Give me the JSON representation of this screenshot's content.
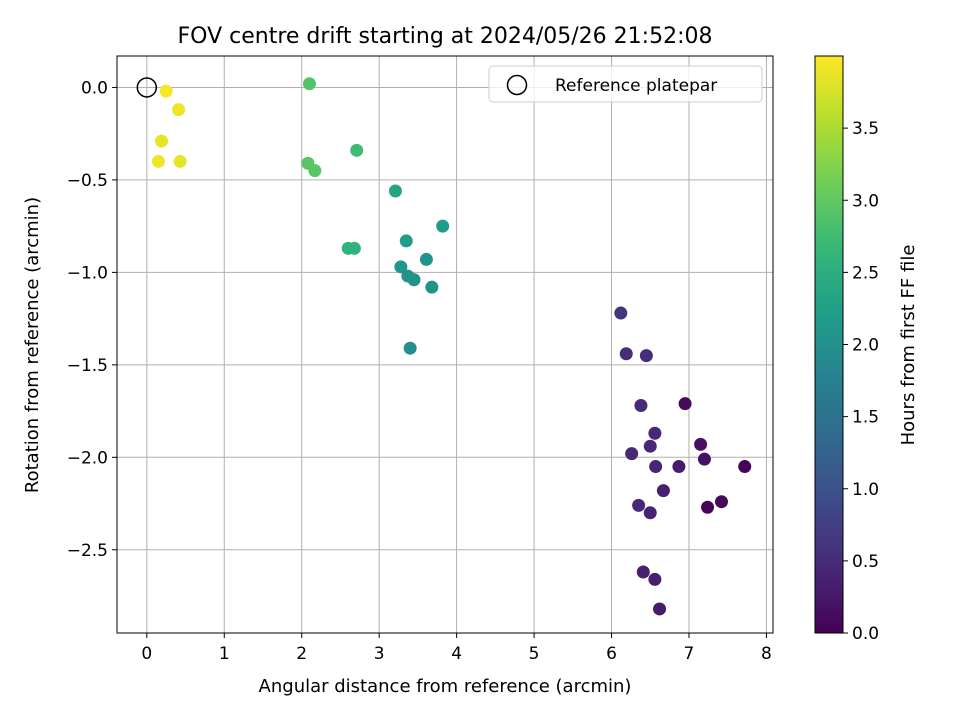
{
  "chart_data": {
    "type": "scatter",
    "title": "FOV centre drift starting at 2024/05/26 21:52:08",
    "xlabel": "Angular distance from reference (arcmin)",
    "ylabel": "Rotation from reference (arcmin)",
    "xlim": [
      -0.385,
      8.085
    ],
    "ylim": [
      -2.95,
      0.17
    ],
    "xticks": [
      0,
      1,
      2,
      3,
      4,
      5,
      6,
      7,
      8
    ],
    "xtick_labels": [
      "0",
      "1",
      "2",
      "3",
      "4",
      "5",
      "6",
      "7",
      "8"
    ],
    "yticks": [
      0.0,
      -0.5,
      -1.0,
      -1.5,
      -2.0,
      -2.5
    ],
    "ytick_labels": [
      "0.0",
      "−0.5",
      "−1.0",
      "−1.5",
      "−2.0",
      "−2.5"
    ],
    "grid": true,
    "legend": {
      "position": "upper-right",
      "entries": [
        {
          "label": "Reference platepar",
          "marker": "open-circle",
          "color": "#000000"
        }
      ]
    },
    "reference_point": {
      "x": 0.0,
      "y": 0.0
    },
    "colorbar": {
      "label": "Hours from first FF file",
      "colormap": "viridis",
      "range": [
        0.0,
        4.0
      ],
      "ticks": [
        0.0,
        0.5,
        1.0,
        1.5,
        2.0,
        2.5,
        3.0,
        3.5
      ],
      "tick_labels": [
        "0.0",
        "0.5",
        "1.0",
        "1.5",
        "2.0",
        "2.5",
        "3.0",
        "3.5"
      ]
    },
    "points": [
      {
        "x": 0.25,
        "y": -0.02,
        "hours": 3.95
      },
      {
        "x": 0.41,
        "y": -0.12,
        "hours": 3.9
      },
      {
        "x": 0.19,
        "y": -0.29,
        "hours": 3.85
      },
      {
        "x": 0.15,
        "y": -0.4,
        "hours": 3.9
      },
      {
        "x": 0.43,
        "y": -0.4,
        "hours": 3.85
      },
      {
        "x": 2.1,
        "y": 0.02,
        "hours": 2.9
      },
      {
        "x": 2.08,
        "y": -0.41,
        "hours": 2.95
      },
      {
        "x": 2.17,
        "y": -0.45,
        "hours": 2.95
      },
      {
        "x": 2.71,
        "y": -0.34,
        "hours": 2.75
      },
      {
        "x": 3.21,
        "y": -0.56,
        "hours": 2.35
      },
      {
        "x": 2.6,
        "y": -0.87,
        "hours": 2.6
      },
      {
        "x": 2.68,
        "y": -0.87,
        "hours": 2.6
      },
      {
        "x": 3.35,
        "y": -0.83,
        "hours": 2.2
      },
      {
        "x": 3.82,
        "y": -0.75,
        "hours": 2.2
      },
      {
        "x": 3.28,
        "y": -0.97,
        "hours": 2.1
      },
      {
        "x": 3.61,
        "y": -0.93,
        "hours": 2.05
      },
      {
        "x": 3.37,
        "y": -1.02,
        "hours": 2.05
      },
      {
        "x": 3.45,
        "y": -1.04,
        "hours": 2.05
      },
      {
        "x": 3.68,
        "y": -1.08,
        "hours": 2.05
      },
      {
        "x": 3.4,
        "y": -1.41,
        "hours": 2.0
      },
      {
        "x": 6.12,
        "y": -1.22,
        "hours": 0.6
      },
      {
        "x": 6.19,
        "y": -1.44,
        "hours": 0.5
      },
      {
        "x": 6.45,
        "y": -1.45,
        "hours": 0.5
      },
      {
        "x": 6.38,
        "y": -1.72,
        "hours": 0.45
      },
      {
        "x": 6.56,
        "y": -1.87,
        "hours": 0.45
      },
      {
        "x": 6.95,
        "y": -1.71,
        "hours": 0.1
      },
      {
        "x": 6.5,
        "y": -1.94,
        "hours": 0.45
      },
      {
        "x": 6.26,
        "y": -1.98,
        "hours": 0.45
      },
      {
        "x": 7.15,
        "y": -1.93,
        "hours": 0.2
      },
      {
        "x": 7.2,
        "y": -2.01,
        "hours": 0.2
      },
      {
        "x": 6.57,
        "y": -2.05,
        "hours": 0.4
      },
      {
        "x": 6.87,
        "y": -2.05,
        "hours": 0.3
      },
      {
        "x": 7.72,
        "y": -2.05,
        "hours": 0.05
      },
      {
        "x": 6.67,
        "y": -2.18,
        "hours": 0.35
      },
      {
        "x": 6.35,
        "y": -2.26,
        "hours": 0.45
      },
      {
        "x": 6.5,
        "y": -2.3,
        "hours": 0.4
      },
      {
        "x": 7.42,
        "y": -2.24,
        "hours": 0.1
      },
      {
        "x": 7.24,
        "y": -2.27,
        "hours": 0.05
      },
      {
        "x": 6.41,
        "y": -2.62,
        "hours": 0.35
      },
      {
        "x": 6.56,
        "y": -2.66,
        "hours": 0.35
      },
      {
        "x": 6.62,
        "y": -2.82,
        "hours": 0.3
      }
    ]
  }
}
